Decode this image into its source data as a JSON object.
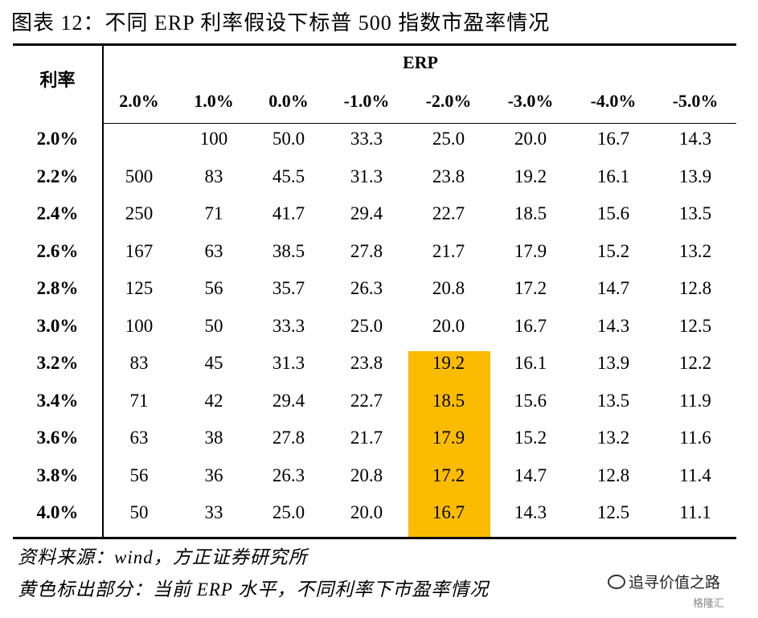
{
  "title": "图表 12：不同 ERP 利率假设下标普 500 指数市盈率情况",
  "table": {
    "row_header": "利率",
    "col_group_header": "ERP",
    "columns": [
      "2.0%",
      "1.0%",
      "0.0%",
      "-1.0%",
      "-2.0%",
      "-3.0%",
      "-4.0%",
      "-5.0%"
    ],
    "rows": [
      {
        "rate": "2.0%",
        "values": [
          "",
          "100",
          "50.0",
          "33.3",
          "25.0",
          "20.0",
          "16.7",
          "14.3"
        ]
      },
      {
        "rate": "2.2%",
        "values": [
          "500",
          "83",
          "45.5",
          "31.3",
          "23.8",
          "19.2",
          "16.1",
          "13.9"
        ]
      },
      {
        "rate": "2.4%",
        "values": [
          "250",
          "71",
          "41.7",
          "29.4",
          "22.7",
          "18.5",
          "15.6",
          "13.5"
        ]
      },
      {
        "rate": "2.6%",
        "values": [
          "167",
          "63",
          "38.5",
          "27.8",
          "21.7",
          "17.9",
          "15.2",
          "13.2"
        ]
      },
      {
        "rate": "2.8%",
        "values": [
          "125",
          "56",
          "35.7",
          "26.3",
          "20.8",
          "17.2",
          "14.7",
          "12.8"
        ]
      },
      {
        "rate": "3.0%",
        "values": [
          "100",
          "50",
          "33.3",
          "25.0",
          "20.0",
          "16.7",
          "14.3",
          "12.5"
        ]
      },
      {
        "rate": "3.2%",
        "values": [
          "83",
          "45",
          "31.3",
          "23.8",
          "19.2",
          "16.1",
          "13.9",
          "12.2"
        ]
      },
      {
        "rate": "3.4%",
        "values": [
          "71",
          "42",
          "29.4",
          "22.7",
          "18.5",
          "15.6",
          "13.5",
          "11.9"
        ]
      },
      {
        "rate": "3.6%",
        "values": [
          "63",
          "38",
          "27.8",
          "21.7",
          "17.9",
          "15.2",
          "13.2",
          "11.6"
        ]
      },
      {
        "rate": "3.8%",
        "values": [
          "56",
          "36",
          "26.3",
          "20.8",
          "17.2",
          "14.7",
          "12.8",
          "11.4"
        ]
      },
      {
        "rate": "4.0%",
        "values": [
          "50",
          "33",
          "25.0",
          "20.0",
          "16.7",
          "14.3",
          "12.5",
          "11.1"
        ]
      }
    ],
    "highlight_color": "#fbbb00",
    "highlight_column": "-2.0%",
    "highlight_rows": [
      "3.2%",
      "3.4%",
      "3.6%",
      "3.8%",
      "4.0%"
    ]
  },
  "source_note": "资料来源：wind，方正证券研究所",
  "highlight_note": "黄色标出部分：当前 ERP 水平，不同利率下市盈率情况",
  "watermark": {
    "icon": "wechat-icon",
    "text": "追寻价值之路",
    "brand": "格隆汇"
  }
}
